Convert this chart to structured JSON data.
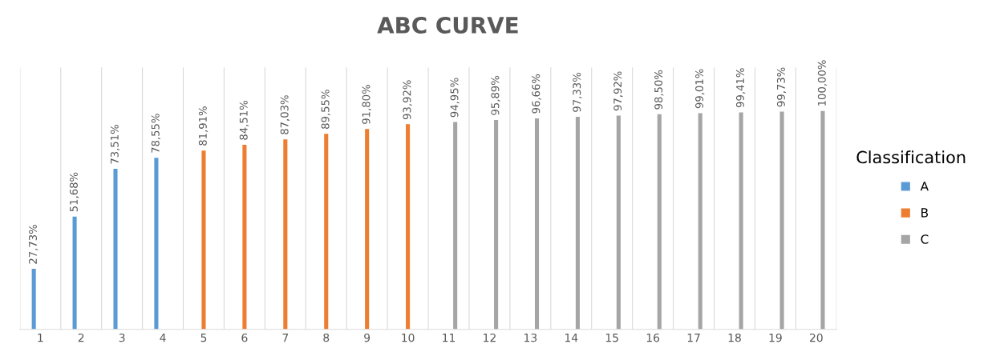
{
  "chart_data": {
    "type": "bar",
    "title": "ABC CURVE",
    "legend_title": "Classification",
    "legend": "right",
    "grid": "x",
    "categories": [
      "1",
      "2",
      "3",
      "4",
      "5",
      "6",
      "7",
      "8",
      "9",
      "10",
      "11",
      "12",
      "13",
      "14",
      "15",
      "16",
      "17",
      "18",
      "19",
      "20"
    ],
    "series": [
      {
        "name": "A",
        "color": "#5b9bd5",
        "values": [
          27.73,
          51.68,
          73.51,
          78.55,
          null,
          null,
          null,
          null,
          null,
          null,
          null,
          null,
          null,
          null,
          null,
          null,
          null,
          null,
          null,
          null
        ],
        "value_labels": [
          "27,73%",
          "51,68%",
          "73,51%",
          "78,55%",
          null,
          null,
          null,
          null,
          null,
          null,
          null,
          null,
          null,
          null,
          null,
          null,
          null,
          null,
          null,
          null
        ]
      },
      {
        "name": "B",
        "color": "#ed7d31",
        "values": [
          null,
          null,
          null,
          null,
          81.91,
          84.51,
          87.03,
          89.55,
          91.8,
          93.92,
          null,
          null,
          null,
          null,
          null,
          null,
          null,
          null,
          null,
          null
        ],
        "value_labels": [
          null,
          null,
          null,
          null,
          "81,91%",
          "84,51%",
          "87,03%",
          "89,55%",
          "91,80%",
          "93,92%",
          null,
          null,
          null,
          null,
          null,
          null,
          null,
          null,
          null,
          null
        ]
      },
      {
        "name": "C",
        "color": "#a5a5a5",
        "values": [
          null,
          null,
          null,
          null,
          null,
          null,
          null,
          null,
          null,
          null,
          94.95,
          95.89,
          96.66,
          97.33,
          97.92,
          98.5,
          99.01,
          99.41,
          99.73,
          100.0
        ],
        "value_labels": [
          null,
          null,
          null,
          null,
          null,
          null,
          null,
          null,
          null,
          null,
          "94,95%",
          "95,89%",
          "96,66%",
          "97,33%",
          "97,92%",
          "98,50%",
          "99,01%",
          "99,41%",
          "99,73%",
          "100,00%"
        ]
      }
    ]
  }
}
